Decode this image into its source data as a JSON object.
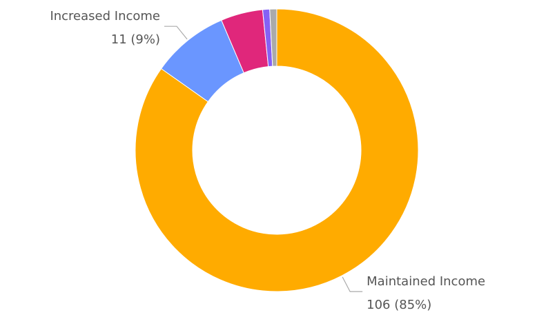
{
  "chart_data": {
    "type": "donut",
    "categories": [
      "Maintained Income",
      "Increased Income",
      null,
      null,
      null
    ],
    "values": [
      106,
      11,
      6,
      1,
      1
    ],
    "value_labels": [
      "106 (85%)",
      "11 (9%)",
      null,
      null,
      null
    ],
    "colors": [
      "#ffab00",
      "#6a96ff",
      "#e0277b",
      "#8561f5",
      "#aaaaaa"
    ]
  }
}
